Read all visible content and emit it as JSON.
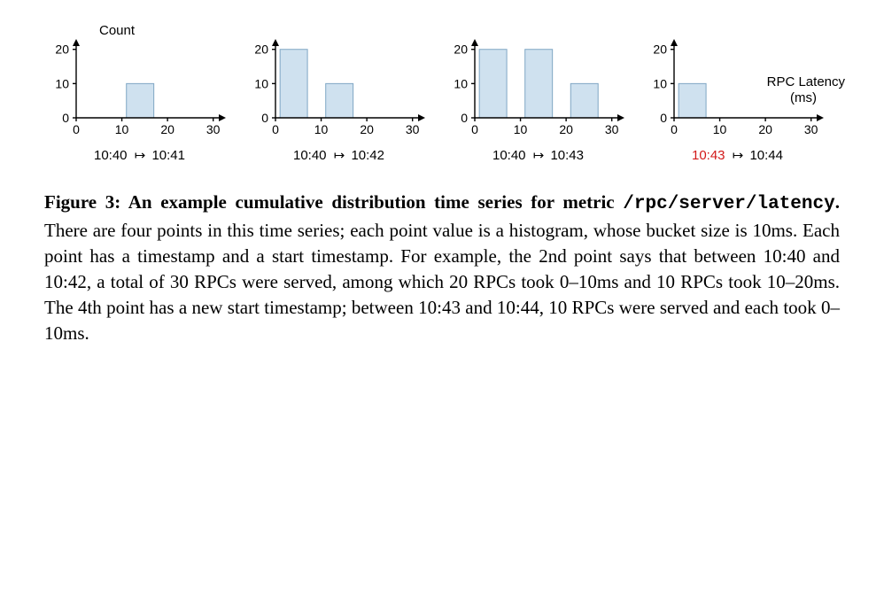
{
  "figure": {
    "axis_label_top": "Count",
    "axis_label_right_line1": "RPC Latency",
    "axis_label_right_line2": "(ms)",
    "chart_common": {
      "ylim": [
        0,
        22
      ],
      "yticks": [
        0,
        10,
        20
      ],
      "xlim": [
        0,
        32
      ],
      "xticks": [
        0,
        10,
        20,
        30
      ],
      "bar_fill": "#cfe1ef",
      "bar_stroke": "#7fa6c4",
      "axis_color": "#000000",
      "tick_fontsize": 14,
      "bar_width_units": 6,
      "bucket_size_ms": 10
    },
    "panels": [
      {
        "bars": [
          {
            "x": 10,
            "h": 10
          }
        ],
        "range_start": "10:40",
        "range_end": "10:41",
        "start_red": false
      },
      {
        "bars": [
          {
            "x": 0,
            "h": 20
          },
          {
            "x": 10,
            "h": 10
          }
        ],
        "range_start": "10:40",
        "range_end": "10:42",
        "start_red": false
      },
      {
        "bars": [
          {
            "x": 0,
            "h": 20
          },
          {
            "x": 10,
            "h": 20
          },
          {
            "x": 20,
            "h": 10
          }
        ],
        "range_start": "10:40",
        "range_end": "10:43",
        "start_red": false
      },
      {
        "bars": [
          {
            "x": 0,
            "h": 10
          }
        ],
        "range_start": "10:43",
        "range_end": "10:44",
        "start_red": true
      }
    ]
  },
  "caption": {
    "figure_label": "Figure 3:",
    "bold_text": " An example cumulative distribution time series for metric ",
    "code_text": "/rpc/server/latency",
    "bold_period": ".",
    "body": " There are four points in this time series; each point value is a histogram, whose bucket size is 10ms. Each point has a timestamp and a start timestamp. For example, the 2nd point says that between 10:40 and 10:42, a total of 30 RPCs were served, among which 20 RPCs took 0–10ms and 10 RPCs took 10–20ms. The 4th point has a new start timestamp; between 10:43 and 10:44, 10 RPCs were served and each took 0–10ms."
  }
}
